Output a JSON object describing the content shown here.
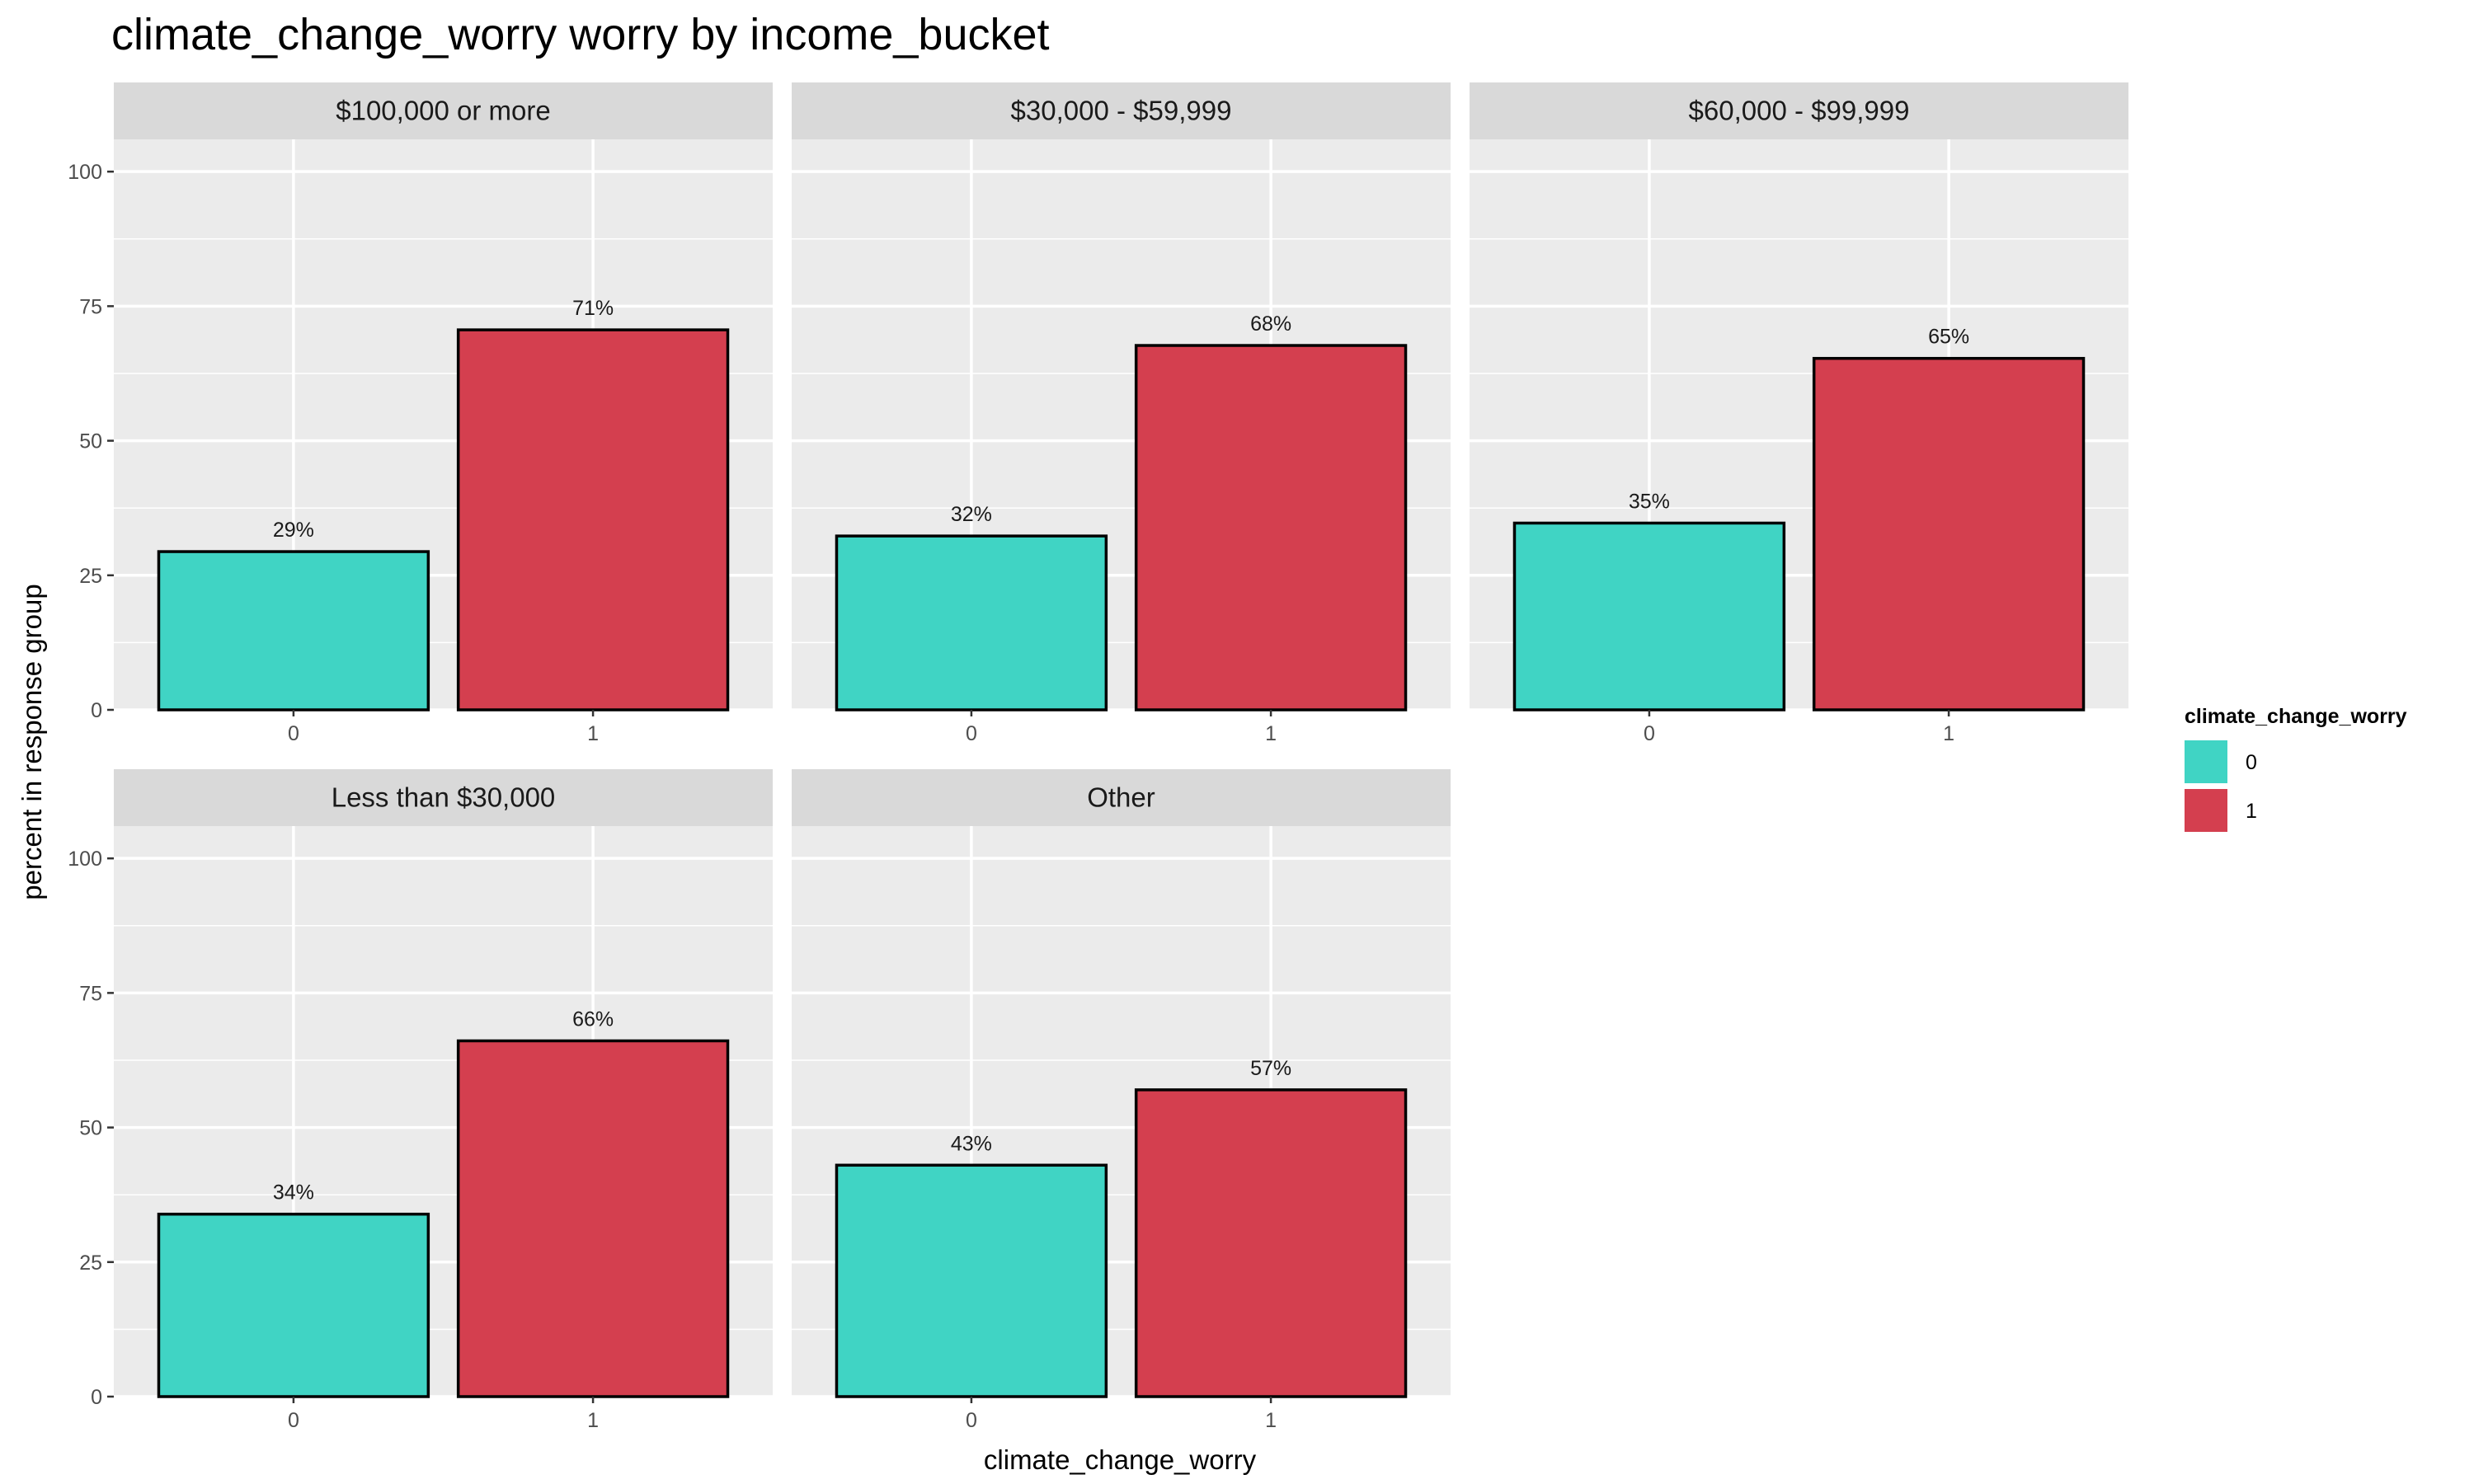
{
  "chart_data": {
    "type": "bar",
    "title": "climate_change_worry worry by income_bucket",
    "xlabel": "climate_change_worry",
    "ylabel": "percent in response group",
    "ylim": [
      0,
      106
    ],
    "yticks": [
      0,
      25,
      50,
      75,
      100
    ],
    "categories": [
      "0",
      "1"
    ],
    "grid": true,
    "colors": {
      "0": "#40D4C4",
      "1": "#D43F4F"
    },
    "legend": {
      "title": "climate_change_worry",
      "placement": "right",
      "entries": [
        "0",
        "1"
      ]
    },
    "facets": [
      {
        "name": "$100,000 or more",
        "values": [
          29.4,
          70.6
        ],
        "labels": [
          "29%",
          "71%"
        ]
      },
      {
        "name": "$30,000 - $59,999",
        "values": [
          32.3,
          67.7
        ],
        "labels": [
          "32%",
          "68%"
        ]
      },
      {
        "name": "$60,000 - $99,999",
        "values": [
          34.7,
          65.3
        ],
        "labels": [
          "35%",
          "65%"
        ]
      },
      {
        "name": "Less than $30,000",
        "values": [
          33.9,
          66.1
        ],
        "labels": [
          "34%",
          "66%"
        ]
      },
      {
        "name": "Other",
        "values": [
          43.0,
          57.0
        ],
        "labels": [
          "43%",
          "57%"
        ]
      }
    ]
  }
}
